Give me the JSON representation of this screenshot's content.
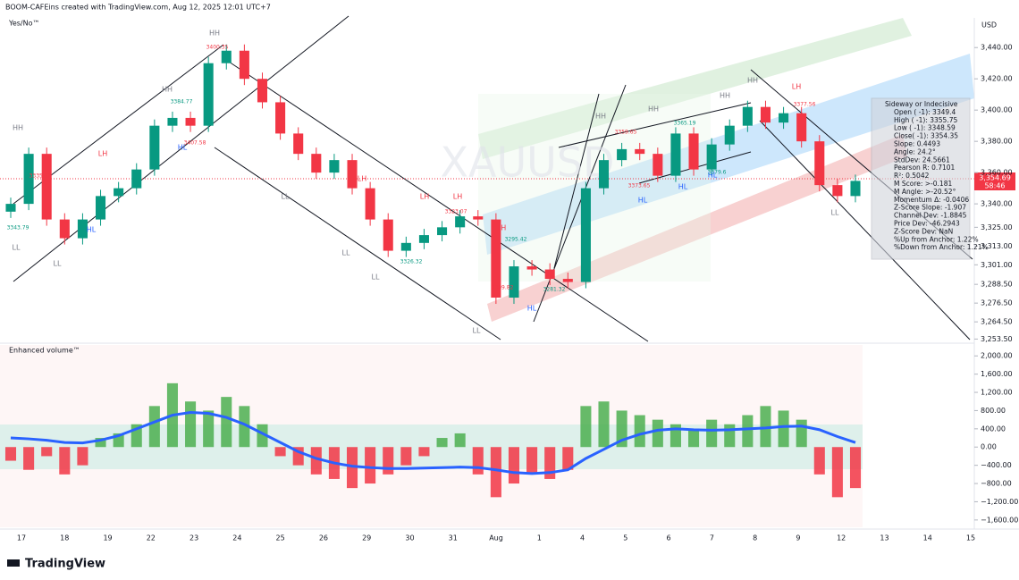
{
  "header": "BOOM-CAFEins created with TradingView.com, Aug 12, 2025 12:01 UTC+7",
  "indicator_top": "Yes/No™",
  "currency": "USD",
  "watermark": "XAUUSD",
  "price_label": "3,354.69",
  "countdown": "58:46",
  "logo": "TradingView",
  "annotations": [
    "HH",
    "HH",
    "HH",
    "LH",
    "LH",
    "LH",
    "LH",
    "LH",
    "LH",
    "HH",
    "HH",
    "HH",
    "HH",
    "LL",
    "LL",
    "LL",
    "LL",
    "LL",
    "LL",
    "LL",
    "HL",
    "HL",
    "HL",
    "HL",
    "HL",
    "HL"
  ],
  "price_tags": [
    "3335.38",
    "3343.79",
    "3400.35",
    "3384.77",
    "3407.58",
    "3326.32",
    "3323.07",
    "3295.42",
    "3309.82",
    "3281.32",
    "3359.65",
    "3365.19",
    "3373.65",
    "3379.6",
    "3377.56"
  ],
  "info_box": [
    "Sideway or Indecisive",
    "Open ( -1): 3349.4",
    "High ( -1): 3355.75",
    "Low  ( -1): 3348.59",
    "Close( -1): 3354.35",
    "Slope: 0.4493",
    "Angle: 24.2°",
    "StdDev: 24.5661",
    "Pearson R: 0.7101",
    "R²: 0.5042",
    "M Score: >-0.181",
    "M Angle: >-20.52°",
    "Momentum Δ: -0.0406",
    "Z-Score Slope: -1.907",
    "Channel Dev: -1.8845",
    "Price Dev: -46.2943",
    "Z-Score Dev: NaN",
    "%Up from Anchor: 1.22%",
    "%Down from Anchor: 1.21%"
  ],
  "chart_data": [
    {
      "type": "candlestick",
      "categories": [
        "17",
        "18",
        "19",
        "22",
        "23",
        "24",
        "25",
        "26",
        "29",
        "30",
        "31",
        "Aug",
        "1",
        "4",
        "5",
        "6",
        "7",
        "8",
        "9",
        "12",
        "13",
        "14",
        "15"
      ],
      "open": [
        3335,
        3340,
        3372,
        3330,
        3318,
        3330,
        3345,
        3350,
        3362,
        3390,
        3395,
        3390,
        3430,
        3438,
        3420,
        3405,
        3385,
        3372,
        3360,
        3368,
        3350,
        3330,
        3310,
        3315,
        3320,
        3325,
        3332,
        3330,
        3280,
        3300,
        3298,
        3292,
        3290,
        3350,
        3368,
        3375,
        3372,
        3358,
        3385,
        3362,
        3378,
        3390,
        3402,
        3392,
        3398,
        3380,
        3352,
        3345
      ],
      "high": [
        3344,
        3376,
        3376,
        3334,
        3334,
        3349,
        3354,
        3366,
        3394,
        3399,
        3399,
        3434,
        3442,
        3442,
        3424,
        3409,
        3389,
        3376,
        3372,
        3372,
        3354,
        3334,
        3319,
        3324,
        3329,
        3336,
        3336,
        3334,
        3304,
        3304,
        3302,
        3296,
        3354,
        3372,
        3379,
        3379,
        3376,
        3389,
        3389,
        3382,
        3394,
        3406,
        3406,
        3402,
        3402,
        3384,
        3356,
        3358.69
      ],
      "low": [
        3331,
        3336,
        3326,
        3314,
        3314,
        3326,
        3341,
        3346,
        3358,
        3386,
        3386,
        3386,
        3426,
        3416,
        3401,
        3381,
        3368,
        3356,
        3356,
        3346,
        3326,
        3306,
        3306,
        3311,
        3316,
        3321,
        3326,
        3276,
        3276,
        3294,
        3288,
        3286,
        3286,
        3346,
        3364,
        3368,
        3354,
        3354,
        3358,
        3358,
        3374,
        3386,
        3388,
        3388,
        3376,
        3348,
        3341,
        3341
      ],
      "close": [
        3340,
        3372,
        3330,
        3318,
        3330,
        3345,
        3350,
        3362,
        3390,
        3395,
        3390,
        3430,
        3438,
        3420,
        3405,
        3385,
        3372,
        3360,
        3368,
        3350,
        3330,
        3310,
        3315,
        3320,
        3325,
        3332,
        3330,
        3280,
        3300,
        3298,
        3292,
        3290,
        3350,
        3368,
        3375,
        3372,
        3358,
        3385,
        3362,
        3378,
        3390,
        3402,
        3392,
        3398,
        3380,
        3352,
        3345,
        3354.69
      ],
      "up_color": "#089981",
      "down_color": "#f23645",
      "ylim": [
        3252,
        3459
      ],
      "yticks": [
        {
          "value": 3253.5,
          "label": "3,253.50"
        },
        {
          "value": 3264.5,
          "label": "3,264.50"
        },
        {
          "value": 3276.5,
          "label": "3,276.50"
        },
        {
          "value": 3288.5,
          "label": "3,288.50"
        },
        {
          "value": 3301,
          "label": "3,301.00"
        },
        {
          "value": 3313,
          "label": "3,313.00"
        },
        {
          "value": 3325,
          "label": "3,325.00"
        },
        {
          "value": 3340,
          "label": "3,340.00"
        },
        {
          "value": 3360,
          "label": "3,360.00"
        },
        {
          "value": 3380,
          "label": "3,380.00"
        },
        {
          "value": 3400,
          "label": "3,400.00"
        },
        {
          "value": 3420,
          "label": "3,420.00"
        },
        {
          "value": 3440,
          "label": "3,440.00"
        }
      ]
    },
    {
      "type": "bar",
      "title": "Enhanced volume™",
      "series": [
        {
          "name": "Volume",
          "color": "#4caf50",
          "negative_color": "#f23645",
          "values": [
            -300,
            -500,
            -200,
            -600,
            -400,
            200,
            300,
            500,
            900,
            1400,
            1000,
            800,
            1100,
            900,
            500,
            -200,
            -400,
            -600,
            -700,
            -900,
            -800,
            -600,
            -400,
            -200,
            200,
            300,
            -600,
            -1100,
            -800,
            -600,
            -700,
            -500,
            900,
            1000,
            800,
            700,
            600,
            500,
            400,
            600,
            500,
            700,
            900,
            800,
            600,
            -600,
            -1100,
            -900
          ]
        },
        {
          "name": "Average",
          "color": "#2962ff",
          "values": [
            200,
            180,
            150,
            100,
            90,
            150,
            250,
            400,
            550,
            700,
            760,
            740,
            650,
            500,
            300,
            100,
            -100,
            -250,
            -350,
            -420,
            -450,
            -470,
            -470,
            -460,
            -450,
            -440,
            -450,
            -500,
            -560,
            -580,
            -560,
            -500,
            -250,
            -50,
            150,
            280,
            370,
            400,
            380,
            370,
            380,
            400,
            420,
            450,
            460,
            380,
            230,
            100
          ]
        }
      ],
      "ylim": [
        -1760,
        2240
      ],
      "yticks": [
        {
          "value": -1600,
          "label": "−1,600.00"
        },
        {
          "value": -1200,
          "label": "−1,200.00"
        },
        {
          "value": -800,
          "label": "−800.00"
        },
        {
          "value": -400,
          "label": "−400.00"
        },
        {
          "value": 0,
          "label": "0.00"
        },
        {
          "value": 400,
          "label": "400.00"
        },
        {
          "value": 800,
          "label": "800.00"
        },
        {
          "value": 1200,
          "label": "1,200.00"
        },
        {
          "value": 1600,
          "label": "1,600.00"
        },
        {
          "value": 2000,
          "label": "2,000.00"
        }
      ]
    }
  ]
}
